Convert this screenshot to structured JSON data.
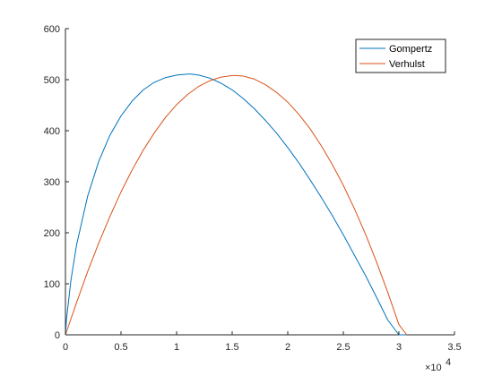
{
  "chart_data": {
    "type": "line",
    "title": "",
    "xlabel": "",
    "ylabel": "",
    "xlim": [
      0,
      35000
    ],
    "ylim": [
      0,
      600
    ],
    "x_ticks": [
      0,
      5000,
      10000,
      15000,
      20000,
      25000,
      30000,
      35000
    ],
    "x_tick_labels": [
      "0",
      "0.5",
      "1",
      "1.5",
      "2",
      "2.5",
      "3",
      "3.5"
    ],
    "x_exponent_base": "×10",
    "x_exponent_power": "4",
    "y_ticks": [
      0,
      100,
      200,
      300,
      400,
      500,
      600
    ],
    "y_tick_labels": [
      "0",
      "100",
      "200",
      "300",
      "400",
      "500",
      "600"
    ],
    "grid": false,
    "legend_position": "top-right",
    "series": [
      {
        "name": "Gompertz",
        "color": "#0072BD",
        "x": [
          0,
          100,
          500,
          1000,
          2000,
          3000,
          4000,
          5000,
          6000,
          7000,
          8000,
          9000,
          10000,
          11000,
          11300,
          12000,
          13000,
          14000,
          15000,
          16000,
          17000,
          18000,
          19000,
          20000,
          21000,
          22000,
          23000,
          24000,
          25000,
          26000,
          27000,
          28000,
          29000,
          30000,
          30700
        ],
        "y": [
          0,
          31,
          108,
          176,
          272,
          340,
          391,
          429,
          458,
          480,
          495,
          504,
          509,
          511,
          511,
          509,
          503,
          493,
          480,
          463,
          443,
          420,
          395,
          367,
          337,
          304,
          270,
          234,
          196,
          156,
          116,
          73,
          29,
          0,
          0
        ]
      },
      {
        "name": "Verhulst",
        "color": "#D95319",
        "x": [
          0,
          1000,
          2000,
          3000,
          4000,
          5000,
          6000,
          7000,
          8000,
          9000,
          10000,
          11000,
          12000,
          13000,
          14000,
          15000,
          15350,
          16000,
          17000,
          18000,
          19000,
          20000,
          21000,
          22000,
          23000,
          24000,
          25000,
          26000,
          27000,
          28000,
          29000,
          30000,
          30700
        ],
        "y": [
          0,
          63,
          124,
          180,
          232,
          280,
          323,
          362,
          396,
          426,
          451,
          471,
          487,
          498,
          505,
          508,
          508,
          507,
          501,
          490,
          475,
          456,
          432,
          404,
          371,
          334,
          293,
          247,
          197,
          142,
          83,
          20,
          0
        ]
      }
    ]
  }
}
